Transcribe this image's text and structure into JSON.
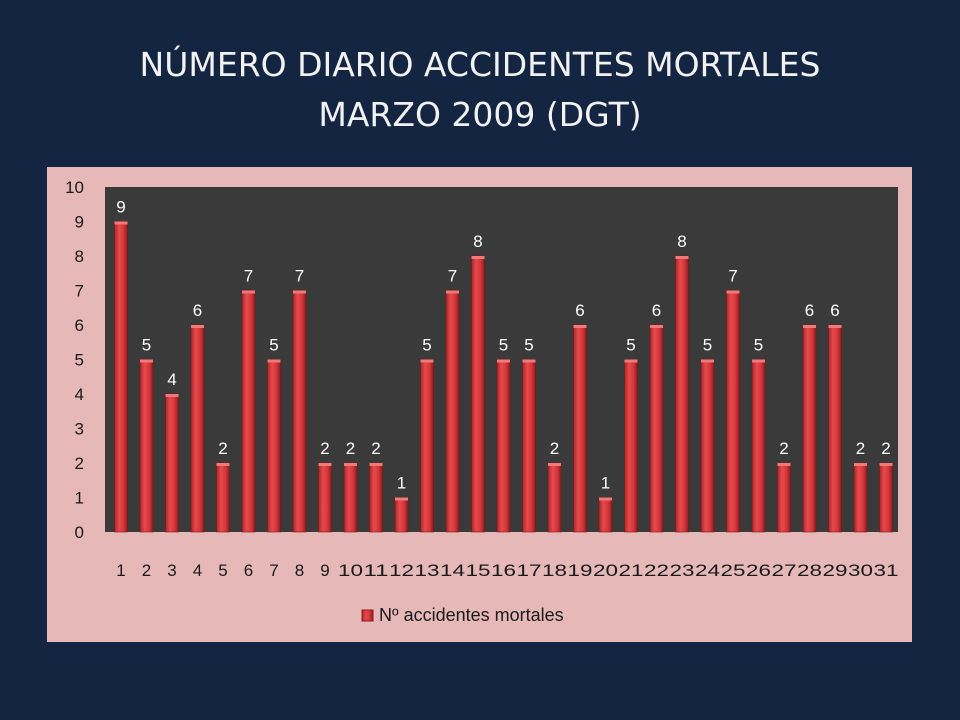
{
  "slide": {
    "title_line1": "NÚMERO DIARIO ACCIDENTES MORTALES",
    "title_line2": "MARZO 2009 (DGT)"
  },
  "colors": {
    "background": "#132540",
    "panel": "#e6b9b8",
    "plot_area": "#3a3a3a",
    "bar": "#d9383a",
    "bar_dark": "#8e1b1d",
    "bar_light": "#f07a7a"
  },
  "chart_data": {
    "type": "bar",
    "categories": [
      "1",
      "2",
      "3",
      "4",
      "5",
      "6",
      "7",
      "8",
      "9",
      "10",
      "11",
      "12",
      "13",
      "14",
      "15",
      "16",
      "17",
      "18",
      "19",
      "20",
      "21",
      "22",
      "23",
      "24",
      "25",
      "26",
      "27",
      "28",
      "29",
      "30",
      "31"
    ],
    "series": [
      {
        "name": "Nº accidentes mortales",
        "values": [
          9,
          5,
          4,
          6,
          2,
          7,
          5,
          7,
          2,
          2,
          2,
          1,
          5,
          7,
          8,
          5,
          5,
          2,
          6,
          1,
          5,
          6,
          8,
          5,
          7,
          5,
          2,
          6,
          6,
          2,
          2
        ]
      }
    ],
    "yticks": [
      "0",
      "1",
      "2",
      "3",
      "4",
      "5",
      "6",
      "7",
      "8",
      "9",
      "10"
    ],
    "ylim": [
      0,
      10
    ],
    "data_labels": true,
    "grid": false,
    "legend": "bottom"
  }
}
